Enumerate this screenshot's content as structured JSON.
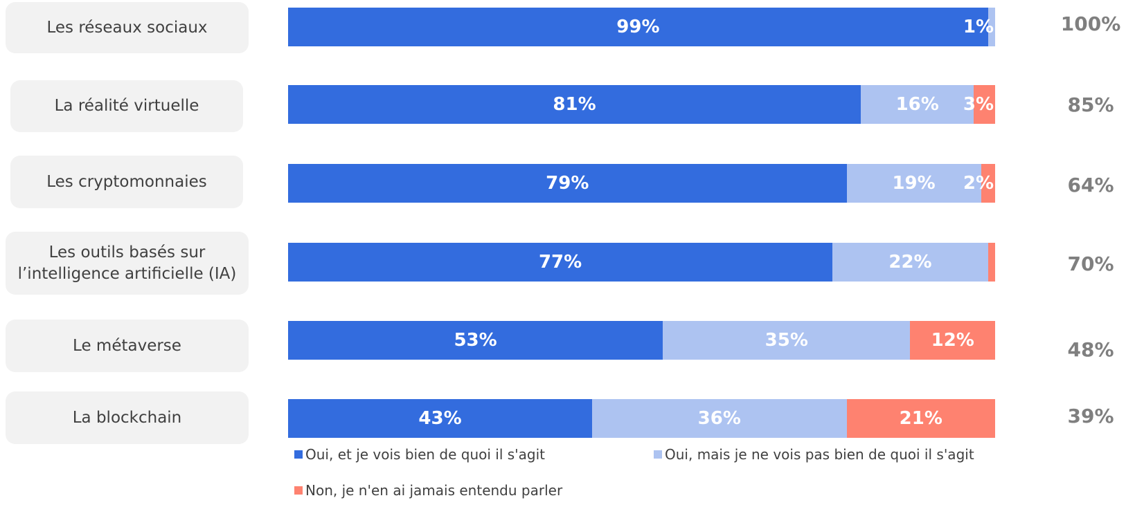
{
  "chart_data": {
    "type": "bar",
    "orientation": "horizontal",
    "stacked": true,
    "categories": [
      "Les réseaux sociaux",
      "La réalité virtuelle",
      "Les cryptomonnaies",
      "Les outils basés sur l’intelligence artificielle (IA)",
      "Le métaverse",
      "La blockchain"
    ],
    "series": [
      {
        "name": "Oui, et je vois bien de quoi il s'agit",
        "color": "#336cde",
        "values": [
          99,
          81,
          79,
          77,
          53,
          43
        ],
        "labels": [
          "99%",
          "81%",
          "79%",
          "77%",
          "53%",
          "43%"
        ]
      },
      {
        "name": "Oui, mais je ne vois pas bien de quoi il s'agit",
        "color": "#adc3f1",
        "values": [
          1,
          16,
          19,
          22,
          35,
          36
        ],
        "labels": [
          "1%",
          "16%",
          "19%",
          "22%",
          "35%",
          "36%"
        ]
      },
      {
        "name": "Non, je n'en ai jamais entendu parler",
        "color": "#fe8270",
        "values": [
          0,
          3,
          2,
          1,
          12,
          21
        ],
        "labels": [
          "",
          "3%",
          "2%",
          "",
          "12%",
          "21%"
        ]
      }
    ],
    "side_values": [
      100,
      85,
      64,
      70,
      48,
      39
    ],
    "side_labels": [
      "100%",
      "85%",
      "64%",
      "70%",
      "48%",
      "39%"
    ],
    "xlim": [
      0,
      100
    ],
    "grid": false,
    "legend_position": "bottom"
  }
}
